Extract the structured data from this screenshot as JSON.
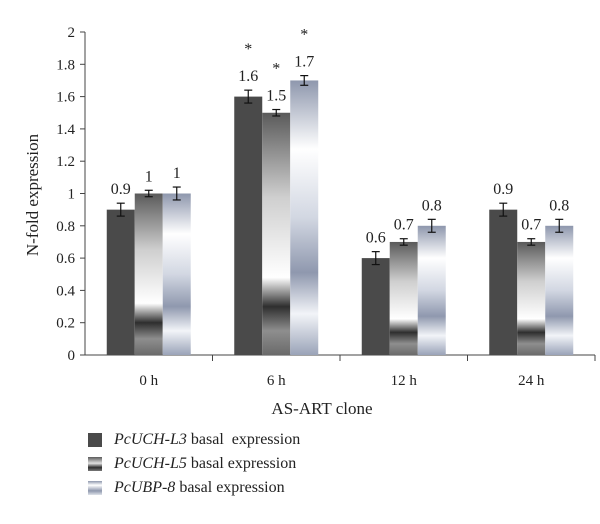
{
  "chart_data": {
    "type": "bar",
    "categories": [
      "0 h",
      "6 h",
      "12 h",
      "24 h"
    ],
    "xlabel": "AS-ART clone",
    "ylabel": "N-fold expression",
    "ylim": [
      0,
      2
    ],
    "yticks": [
      "0",
      "0.2",
      "0.4",
      "0.6",
      "0.8",
      "1",
      "1.2",
      "1.4",
      "1.6",
      "1.8",
      "2"
    ],
    "series": [
      {
        "name_italic": "PcUCH-L3",
        "name_rest": " basal  expression",
        "values": [
          0.9,
          1.6,
          0.6,
          0.9
        ],
        "labels": [
          "0.9",
          "1.6",
          "0.6",
          "0.9"
        ],
        "errors": [
          0.04,
          0.04,
          0.04,
          0.04
        ],
        "significance": [
          "",
          "*",
          "",
          ""
        ],
        "color": "#4a4a4a"
      },
      {
        "name_italic": "PcUCH-L5",
        "name_rest": " basal expression",
        "values": [
          1.0,
          1.5,
          0.7,
          0.7
        ],
        "labels": [
          "1",
          "1.5",
          "0.7",
          "0.7"
        ],
        "errors": [
          0.02,
          0.02,
          0.02,
          0.02
        ],
        "significance": [
          "",
          "*",
          "",
          ""
        ],
        "color": "#7a7a7a"
      },
      {
        "name_italic": "PcUBP-8",
        "name_rest": " basal expression",
        "values": [
          1.0,
          1.7,
          0.8,
          0.8
        ],
        "labels": [
          "1",
          "1.7",
          "0.8",
          "0.8"
        ],
        "errors": [
          0.04,
          0.03,
          0.04,
          0.04
        ],
        "significance": [
          "",
          "*",
          "",
          ""
        ],
        "color": "#a8b0c2"
      }
    ],
    "grid": false,
    "legend_position": "bottom-left"
  }
}
